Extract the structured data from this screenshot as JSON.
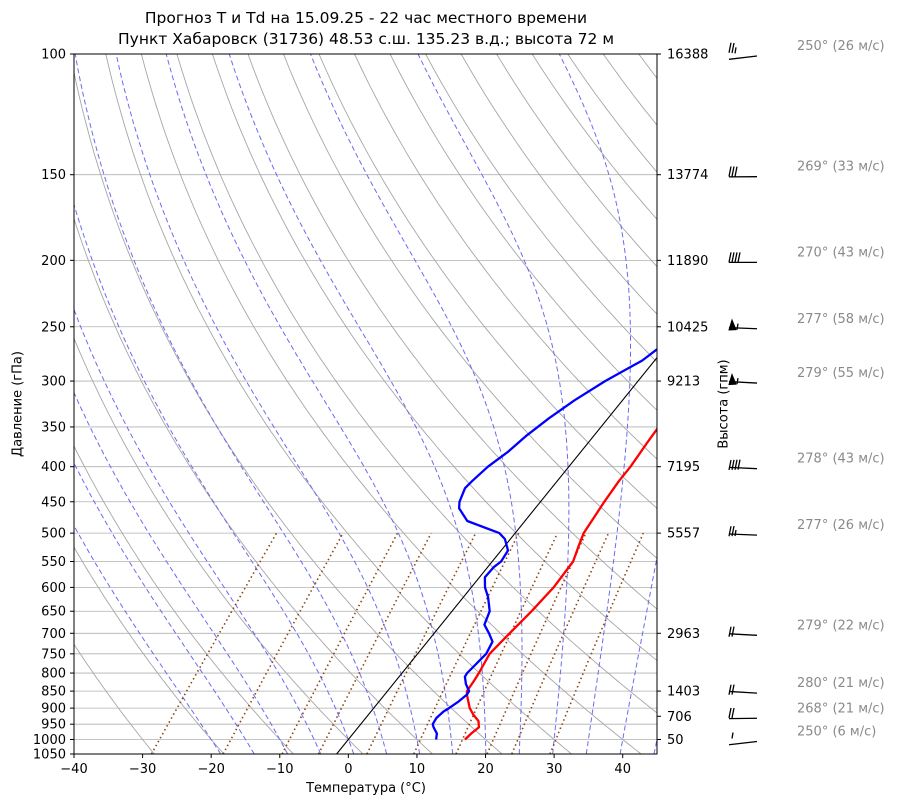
{
  "title_line1": "Прогноз T и Td на 15.09.25 - 22 час местного времени",
  "title_line2": "Пункт Хабаровск (31736) 48.53 с.ш. 135.23 в.д.; высота 72 м",
  "ylabel_left": "Давление (гПа)",
  "ylabel_right": "Высота (гпм)",
  "xlabel": "Температура (°C)",
  "chart_data": {
    "type": "line",
    "subtype": "skew-T log-P diagram",
    "xlim": [
      -40,
      45
    ],
    "ylim": [
      1050,
      100
    ],
    "y_scale": "log",
    "x_ticks": [
      -40,
      -30,
      -20,
      -10,
      0,
      10,
      20,
      30,
      40
    ],
    "pressure_ticks": [
      100,
      150,
      200,
      250,
      300,
      350,
      400,
      450,
      500,
      550,
      600,
      650,
      700,
      750,
      800,
      850,
      900,
      950,
      1000,
      1050
    ],
    "height_ticks": [
      {
        "p": 100,
        "label": "16388"
      },
      {
        "p": 150,
        "label": "13774"
      },
      {
        "p": 200,
        "label": "11890"
      },
      {
        "p": 250,
        "label": "10425"
      },
      {
        "p": 300,
        "label": "9213"
      },
      {
        "p": 400,
        "label": "7195"
      },
      {
        "p": 500,
        "label": "5557"
      },
      {
        "p": 700,
        "label": "2963"
      },
      {
        "p": 850,
        "label": "1403"
      },
      {
        "p": 925,
        "label": "706"
      },
      {
        "p": 1000,
        "label": "50"
      }
    ],
    "grid": true,
    "series": [
      {
        "color": "#ff0000",
        "points": [
          [
            1000,
            17
          ],
          [
            980,
            17.2
          ],
          [
            960,
            17.6
          ],
          [
            940,
            16.8
          ],
          [
            920,
            15.3
          ],
          [
            900,
            14
          ],
          [
            880,
            13
          ],
          [
            860,
            12
          ],
          [
            850,
            11.6
          ],
          [
            820,
            11.4
          ],
          [
            800,
            11.2
          ],
          [
            750,
            10.5
          ],
          [
            700,
            11
          ],
          [
            650,
            11.6
          ],
          [
            600,
            12
          ],
          [
            550,
            11.8
          ],
          [
            520,
            10.7
          ],
          [
            500,
            10
          ],
          [
            450,
            9.3
          ],
          [
            420,
            9
          ],
          [
            400,
            9
          ],
          [
            370,
            8.6
          ],
          [
            350,
            8.4
          ],
          [
            320,
            8.1
          ],
          [
            300,
            8
          ],
          [
            280,
            7.5
          ],
          [
            260,
            9.5
          ],
          [
            250,
            10
          ],
          [
            240,
            11
          ],
          [
            230,
            12.6
          ],
          [
            220,
            14.8
          ],
          [
            210,
            17
          ],
          [
            200,
            19
          ],
          [
            190,
            21.5
          ],
          [
            180,
            23.7
          ],
          [
            170,
            25.6
          ],
          [
            160,
            27.8
          ],
          [
            150,
            30
          ],
          [
            140,
            32.8
          ],
          [
            130,
            36.8
          ],
          [
            120,
            39.8
          ],
          [
            110,
            42.5
          ],
          [
            100,
            45
          ]
        ]
      },
      {
        "color": "#0000ff",
        "points": [
          [
            1000,
            12.8
          ],
          [
            980,
            12.2
          ],
          [
            960,
            11
          ],
          [
            950,
            10.5
          ],
          [
            930,
            10.3
          ],
          [
            910,
            10.6
          ],
          [
            900,
            11
          ],
          [
            880,
            11.6
          ],
          [
            860,
            12
          ],
          [
            850,
            11.9
          ],
          [
            830,
            10.6
          ],
          [
            810,
            9.6
          ],
          [
            800,
            9.5
          ],
          [
            750,
            10
          ],
          [
            720,
            9.5
          ],
          [
            700,
            8
          ],
          [
            680,
            6.3
          ],
          [
            650,
            5.5
          ],
          [
            620,
            3.6
          ],
          [
            600,
            2
          ],
          [
            580,
            0.8
          ],
          [
            560,
            0.9
          ],
          [
            550,
            1.3
          ],
          [
            530,
            1
          ],
          [
            510,
            -0.8
          ],
          [
            500,
            -2.3
          ],
          [
            480,
            -8.4
          ],
          [
            460,
            -11.1
          ],
          [
            450,
            -11.8
          ],
          [
            430,
            -12.6
          ],
          [
            420,
            -12.4
          ],
          [
            400,
            -11.8
          ],
          [
            380,
            -10.6
          ],
          [
            360,
            -9.8
          ],
          [
            340,
            -8.6
          ],
          [
            320,
            -7
          ],
          [
            300,
            -4.8
          ],
          [
            280,
            -1.8
          ],
          [
            270,
            -1
          ],
          [
            260,
            0.3
          ],
          [
            250,
            1
          ],
          [
            240,
            1.5
          ],
          [
            232,
            2
          ],
          [
            226,
            2.8
          ],
          [
            220,
            4.5
          ],
          [
            210,
            7.7
          ],
          [
            200,
            10.5
          ],
          [
            190,
            12.8
          ],
          [
            180,
            14.8
          ],
          [
            170,
            16.8
          ],
          [
            160,
            18.6
          ],
          [
            150,
            20
          ],
          [
            140,
            21.9
          ],
          [
            130,
            23.8
          ],
          [
            120,
            26
          ],
          [
            110,
            28.5
          ],
          [
            100,
            31.5
          ]
        ]
      }
    ],
    "reference_lines": [
      {
        "kind": "dry_adiabats",
        "color": "#a6a6a6",
        "style": "solid"
      },
      {
        "kind": "moist_adiabats",
        "color": "#6b6bf2",
        "style": "dashed"
      },
      {
        "kind": "mixing_ratio",
        "color": "#8b4513",
        "style": "dotted"
      },
      {
        "kind": "isotherm_0C",
        "color": "#000000",
        "style": "solid"
      }
    ],
    "winds": [
      {
        "p": 100,
        "label": "250° (26 м/с)",
        "dir": 250,
        "speed": 26
      },
      {
        "p": 150,
        "label": "269° (33 м/с)",
        "dir": 269,
        "speed": 33
      },
      {
        "p": 200,
        "label": "270° (43 м/с)",
        "dir": 270,
        "speed": 43
      },
      {
        "p": 250,
        "label": "277° (58 м/с)",
        "dir": 277,
        "speed": 58
      },
      {
        "p": 300,
        "label": "279° (55 м/с)",
        "dir": 279,
        "speed": 55
      },
      {
        "p": 400,
        "label": "278° (43 м/с)",
        "dir": 278,
        "speed": 43
      },
      {
        "p": 500,
        "label": "277° (26 м/с)",
        "dir": 277,
        "speed": 26
      },
      {
        "p": 700,
        "label": "279° (22 м/с)",
        "dir": 279,
        "speed": 22
      },
      {
        "p": 850,
        "label": "280° (21 м/с)",
        "dir": 280,
        "speed": 21
      },
      {
        "p": 925,
        "label": "268° (21 м/с)",
        "dir": 268,
        "speed": 21
      },
      {
        "p": 1000,
        "label": "250° (6 м/с)",
        "dir": 250,
        "speed": 6
      }
    ]
  }
}
